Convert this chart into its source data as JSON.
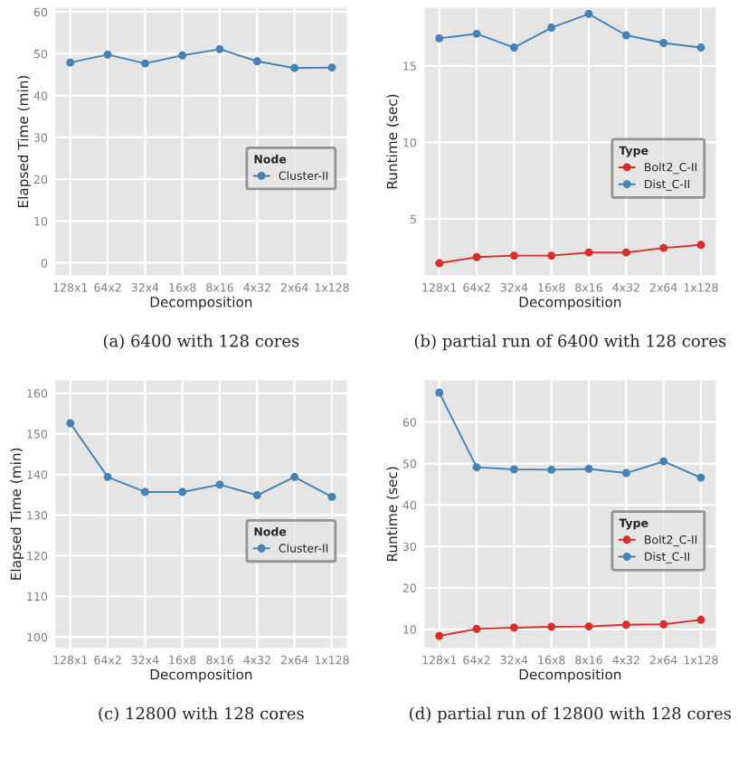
{
  "chart_data": [
    {
      "type": "line",
      "xlabel": "Decomposition",
      "ylabel": "Elapsed Time (min)",
      "legend_title": "Node",
      "categories": [
        "128x1",
        "64x2",
        "32x4",
        "16x8",
        "8x16",
        "4x32",
        "2x64",
        "1x128"
      ],
      "ylim": [
        -3,
        61
      ],
      "yticks": [
        0,
        10,
        20,
        30,
        40,
        50,
        60
      ],
      "grid": true,
      "legend": "right",
      "marker": "circle",
      "annotations": [
        "(a) 6400 with 128 cores"
      ],
      "series": [
        {
          "name": "Cluster-II",
          "color": "#4682b4",
          "values": [
            47.9,
            49.8,
            47.7,
            49.6,
            51.1,
            48.2,
            46.6,
            46.7
          ]
        }
      ]
    },
    {
      "type": "line",
      "xlabel": "Decomposition",
      "ylabel": "Runtime (sec)",
      "legend_title": "Type",
      "categories": [
        "128x1",
        "64x2",
        "32x4",
        "16x8",
        "8x16",
        "4x32",
        "2x64",
        "1x128"
      ],
      "ylim": [
        1.3,
        18.8
      ],
      "yticks": [
        5,
        10,
        15
      ],
      "grid": true,
      "legend": "right",
      "marker": "circle",
      "annotations": [
        "(b) partial run of 6400 with 128 cores"
      ],
      "series": [
        {
          "name": "Bolt2_C-II",
          "color": "#d7302a",
          "values": [
            2.1,
            2.5,
            2.6,
            2.6,
            2.8,
            2.8,
            3.1,
            3.3
          ]
        },
        {
          "name": "Dist_C-II",
          "color": "#4682b4",
          "values": [
            16.8,
            17.1,
            16.2,
            17.5,
            18.4,
            17.0,
            16.5,
            16.2
          ]
        }
      ]
    },
    {
      "type": "line",
      "xlabel": "Decomposition",
      "ylabel": "Elapsed Time (min)",
      "legend_title": "Node",
      "categories": [
        "128x1",
        "64x2",
        "32x4",
        "16x8",
        "8x16",
        "4x32",
        "2x64",
        "1x128"
      ],
      "ylim": [
        97.3,
        163.2
      ],
      "yticks": [
        100,
        110,
        120,
        130,
        140,
        150,
        160
      ],
      "grid": true,
      "legend": "right",
      "marker": "circle",
      "annotations": [
        "(c) 12800 with 128 cores"
      ],
      "series": [
        {
          "name": "Cluster-II",
          "color": "#4682b4",
          "values": [
            152.6,
            139.4,
            135.7,
            135.7,
            137.5,
            134.9,
            139.4,
            134.5
          ]
        }
      ]
    },
    {
      "type": "line",
      "xlabel": "Decomposition",
      "ylabel": "Runtime (sec)",
      "legend_title": "Type",
      "categories": [
        "128x1",
        "64x2",
        "32x4",
        "16x8",
        "8x16",
        "4x32",
        "2x64",
        "1x128"
      ],
      "ylim": [
        5.5,
        70.1
      ],
      "yticks": [
        10,
        20,
        30,
        40,
        50,
        60
      ],
      "grid": true,
      "legend": "right",
      "marker": "circle",
      "annotations": [
        "(d) partial run of 12800 with 128 cores"
      ],
      "series": [
        {
          "name": "Bolt2_C-II",
          "color": "#d7302a",
          "values": [
            8.4,
            10.1,
            10.4,
            10.6,
            10.7,
            11.1,
            11.2,
            12.3
          ]
        },
        {
          "name": "Dist_C-II",
          "color": "#4682b4",
          "values": [
            67.1,
            49.1,
            48.6,
            48.5,
            48.7,
            47.7,
            50.5,
            46.6
          ]
        }
      ]
    }
  ]
}
